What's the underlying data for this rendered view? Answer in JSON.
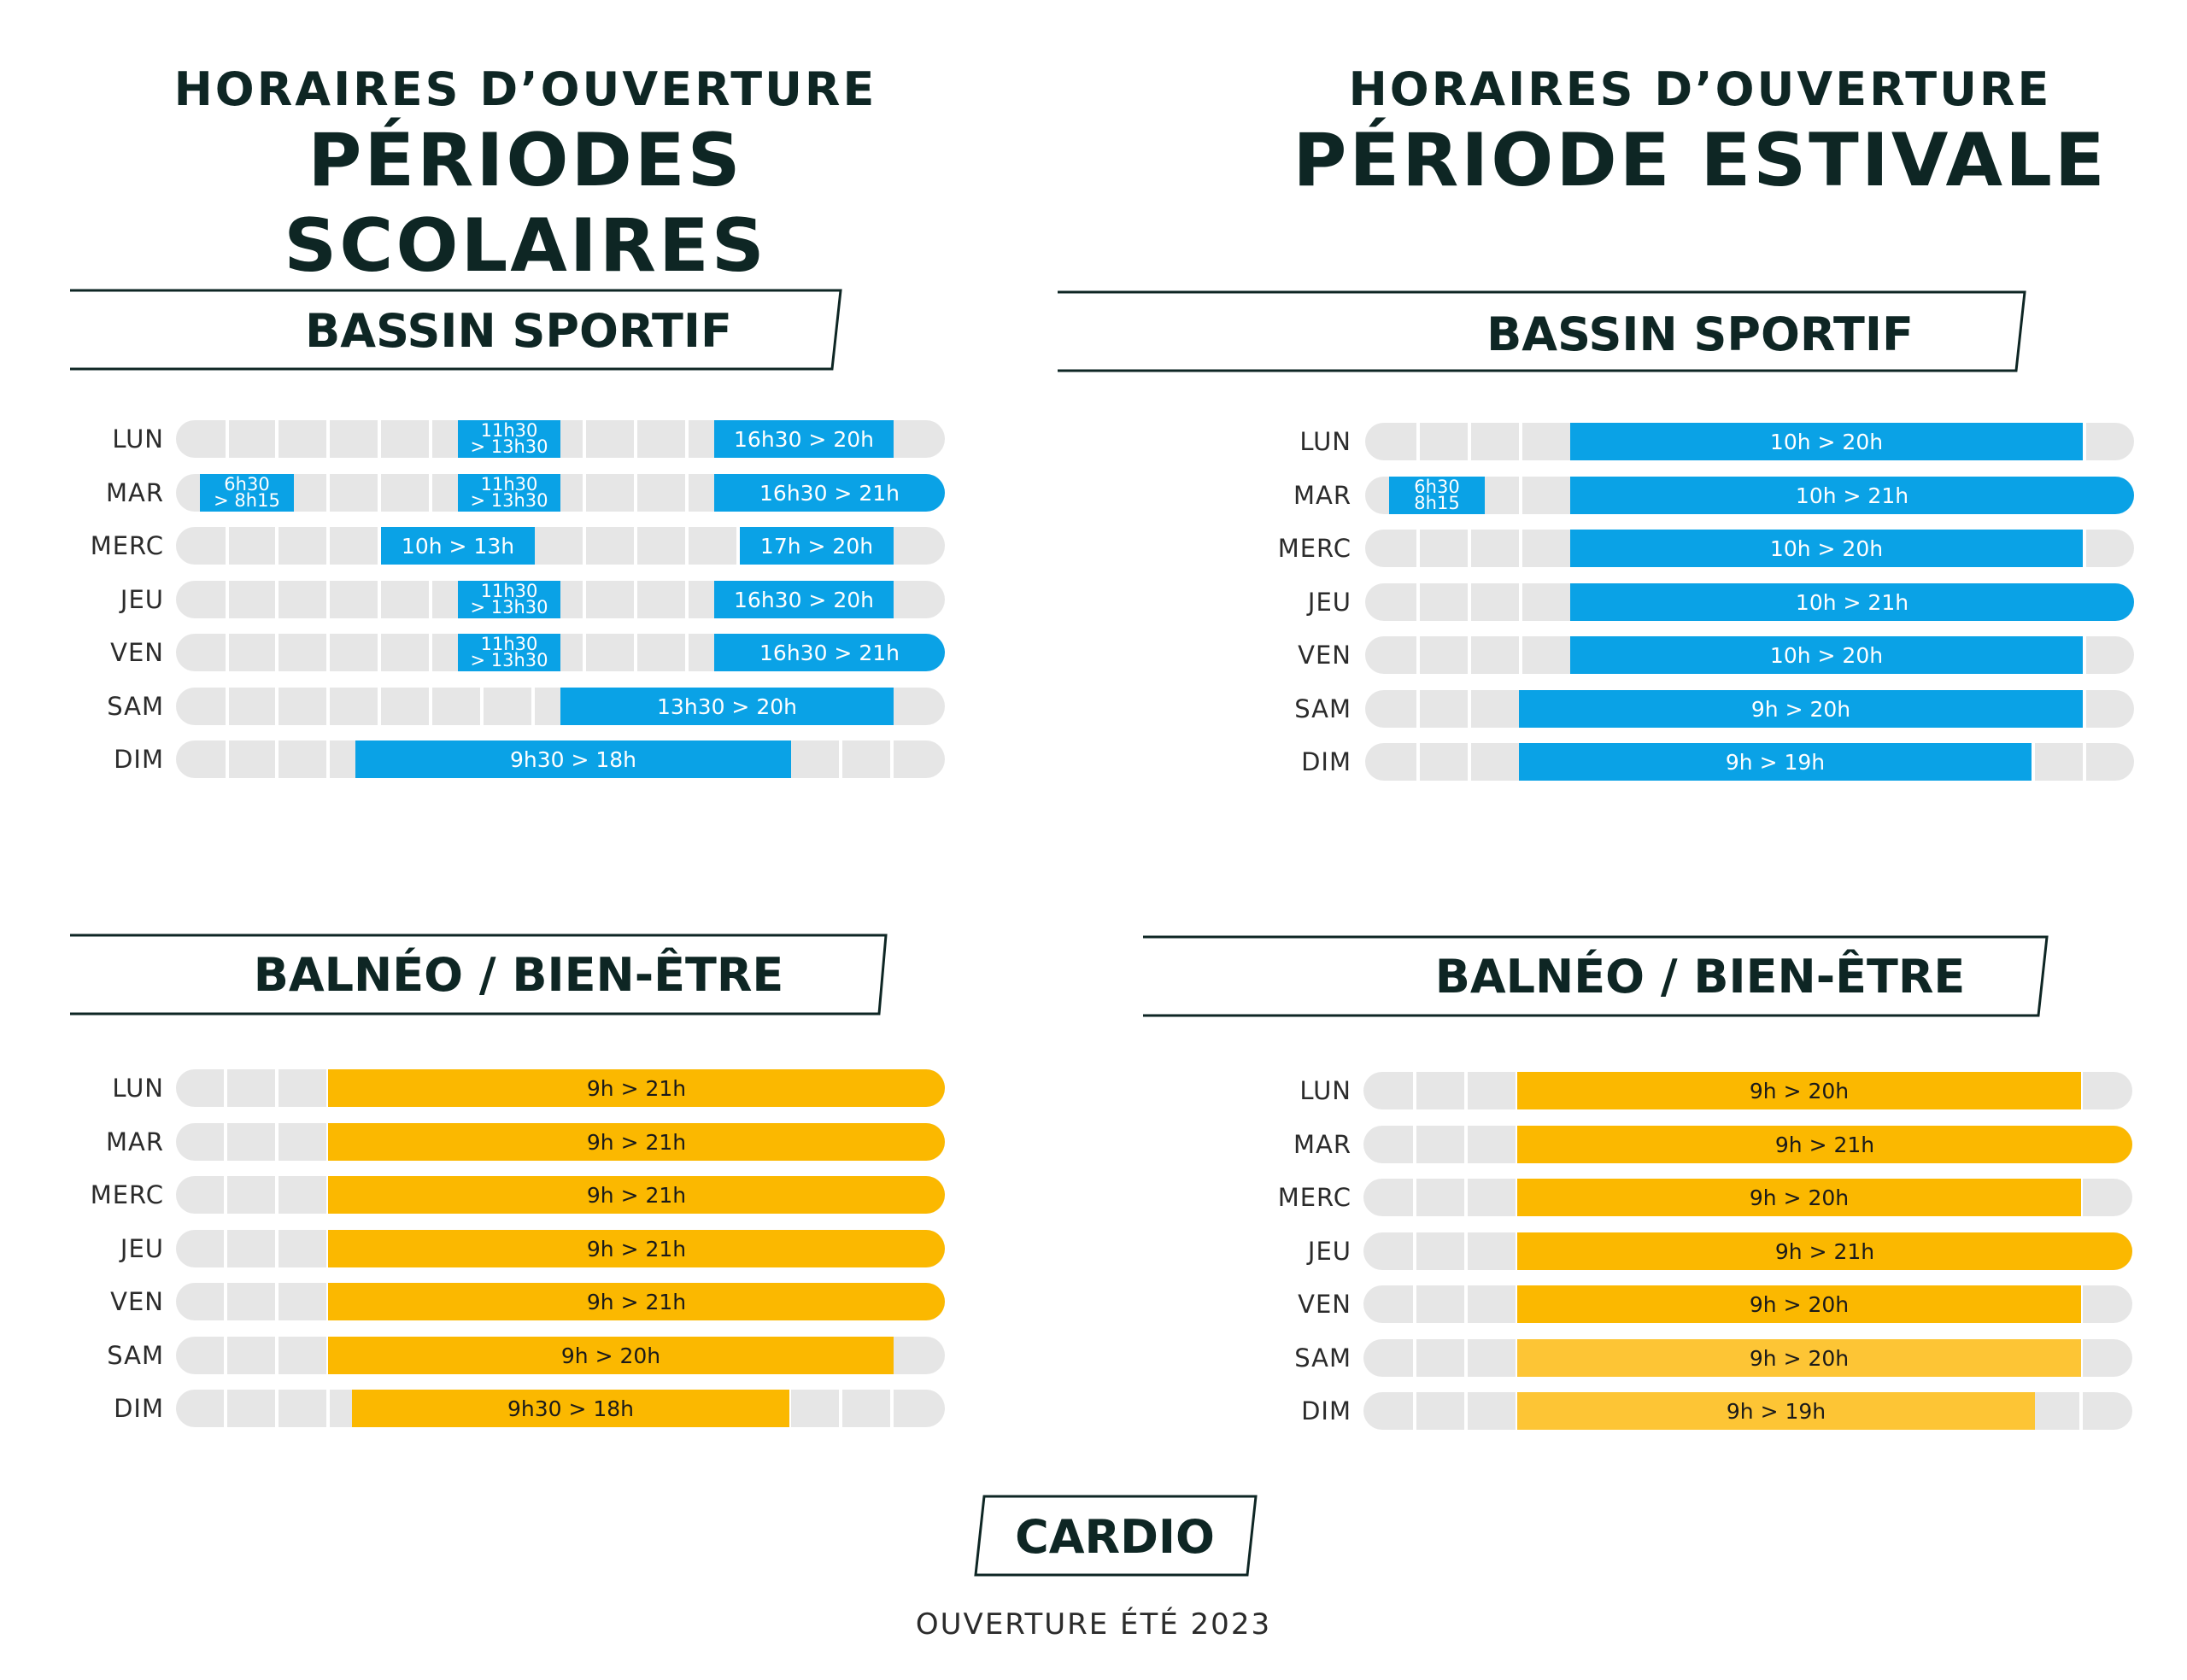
{
  "colors": {
    "dark": "#0e2624",
    "blue": "#0aa2e6",
    "yellow": "#fbb800",
    "yellow_light": "#fdc535",
    "track": "#e6e6e6"
  },
  "left_heading": {
    "line1": "HORAIRES D’OUVERTURE",
    "line2": "PÉRIODES SCOLAIRES"
  },
  "right_heading": {
    "line1": "HORAIRES D’OUVERTURE",
    "line2": "PÉRIODE ESTIVALE"
  },
  "days": [
    "LUN",
    "MAR",
    "MERC",
    "JEU",
    "VEN",
    "SAM",
    "DIM"
  ],
  "panels": {
    "school_pool": {
      "title": "BASSIN SPORTIF",
      "rows": [
        [
          {
            "label": "11h30\n> 13h30"
          },
          {
            "label": "16h30 > 20h"
          }
        ],
        [
          {
            "label": "6h30\n> 8h15"
          },
          {
            "label": "11h30\n> 13h30"
          },
          {
            "label": "16h30 > 21h"
          }
        ],
        [
          {
            "label": "10h > 13h"
          },
          {
            "label": "17h > 20h"
          }
        ],
        [
          {
            "label": "11h30\n> 13h30"
          },
          {
            "label": "16h30 > 20h"
          }
        ],
        [
          {
            "label": "11h30\n> 13h30"
          },
          {
            "label": "16h30 > 21h"
          }
        ],
        [
          {
            "label": "13h30 > 20h"
          }
        ],
        [
          {
            "label": "9h30 > 18h"
          }
        ]
      ]
    },
    "summer_pool": {
      "title": "BASSIN SPORTIF",
      "rows": [
        [
          {
            "label": "10h > 20h"
          }
        ],
        [
          {
            "label": "6h30\n8h15"
          },
          {
            "label": "10h > 21h"
          }
        ],
        [
          {
            "label": "10h > 20h"
          }
        ],
        [
          {
            "label": "10h > 21h"
          }
        ],
        [
          {
            "label": "10h > 20h"
          }
        ],
        [
          {
            "label": "9h > 20h"
          }
        ],
        [
          {
            "label": "9h > 19h"
          }
        ]
      ]
    },
    "school_balneo": {
      "title": "BALNÉO / BIEN-ÊTRE",
      "rows": [
        [
          {
            "label": "9h > 21h"
          }
        ],
        [
          {
            "label": "9h > 21h"
          }
        ],
        [
          {
            "label": "9h > 21h"
          }
        ],
        [
          {
            "label": "9h > 21h"
          }
        ],
        [
          {
            "label": "9h > 21h"
          }
        ],
        [
          {
            "label": "9h > 20h"
          }
        ],
        [
          {
            "label": "9h30 > 18h"
          }
        ]
      ]
    },
    "summer_balneo": {
      "title": "BALNÉO / BIEN-ÊTRE",
      "rows": [
        [
          {
            "label": "9h > 20h"
          }
        ],
        [
          {
            "label": "9h > 21h"
          }
        ],
        [
          {
            "label": "9h > 20h"
          }
        ],
        [
          {
            "label": "9h > 21h"
          }
        ],
        [
          {
            "label": "9h > 20h"
          }
        ],
        [
          {
            "label": "9h > 20h"
          }
        ],
        [
          {
            "label": "9h > 19h"
          }
        ]
      ]
    }
  },
  "cardio": {
    "title": "CARDIO",
    "subtitle": "OUVERTURE ÉTÉ 2023"
  }
}
